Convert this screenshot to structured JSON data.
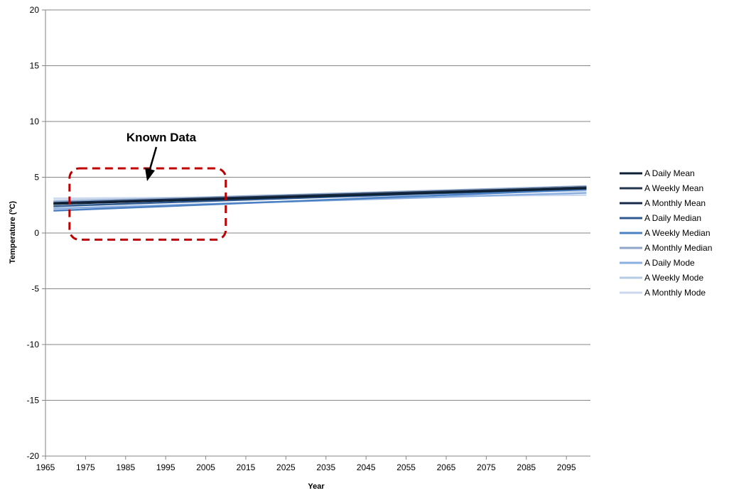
{
  "chart_data": {
    "type": "line",
    "title": "",
    "xlabel": "Year",
    "ylabel": "Temperature (ºC)",
    "xlim": [
      1965,
      2101
    ],
    "ylim": [
      -20,
      20
    ],
    "xticks": [
      1965,
      1975,
      1985,
      1995,
      2005,
      2015,
      2025,
      2035,
      2045,
      2055,
      2065,
      2075,
      2085,
      2095
    ],
    "yticks": [
      -20,
      -15,
      -10,
      -5,
      0,
      5,
      10,
      15,
      20
    ],
    "grid": "horizontal",
    "legend_position": "right",
    "series": [
      {
        "name": "A Daily Mean",
        "color": "#0d1f33",
        "x": [
          1967,
          2100
        ],
        "values": [
          2.6,
          4.0
        ]
      },
      {
        "name": "A Weekly Mean",
        "color": "#24364f",
        "x": [
          1967,
          2100
        ],
        "values": [
          2.6,
          4.1
        ]
      },
      {
        "name": "A Monthly Mean",
        "color": "#16294a",
        "x": [
          1967,
          2100
        ],
        "values": [
          2.7,
          4.1
        ]
      },
      {
        "name": "A Daily Median",
        "color": "#2f5a90",
        "x": [
          1967,
          2100
        ],
        "values": [
          2.4,
          4.0
        ]
      },
      {
        "name": "A Weekly Median",
        "color": "#4b80c3",
        "x": [
          1967,
          2100
        ],
        "values": [
          2.0,
          3.9
        ]
      },
      {
        "name": "A Monthly Median",
        "color": "#8ea6c8",
        "x": [
          1967,
          2100
        ],
        "values": [
          2.8,
          4.2
        ]
      },
      {
        "name": "A Daily Mode",
        "color": "#8bafe0",
        "x": [
          1967,
          2100
        ],
        "values": [
          2.2,
          3.6
        ]
      },
      {
        "name": "A Weekly Mode",
        "color": "#b6cbe6",
        "x": [
          1967,
          2100
        ],
        "values": [
          2.9,
          3.8
        ]
      },
      {
        "name": "A Monthly Mode",
        "color": "#cbd8ee",
        "x": [
          1967,
          2100
        ],
        "values": [
          3.1,
          3.4
        ]
      }
    ],
    "annotations": [
      {
        "text": "Known Data",
        "box_x": [
          1971,
          2010
        ],
        "box_y": [
          -0.6,
          5.8
        ],
        "box_color": "#c00000"
      }
    ]
  }
}
